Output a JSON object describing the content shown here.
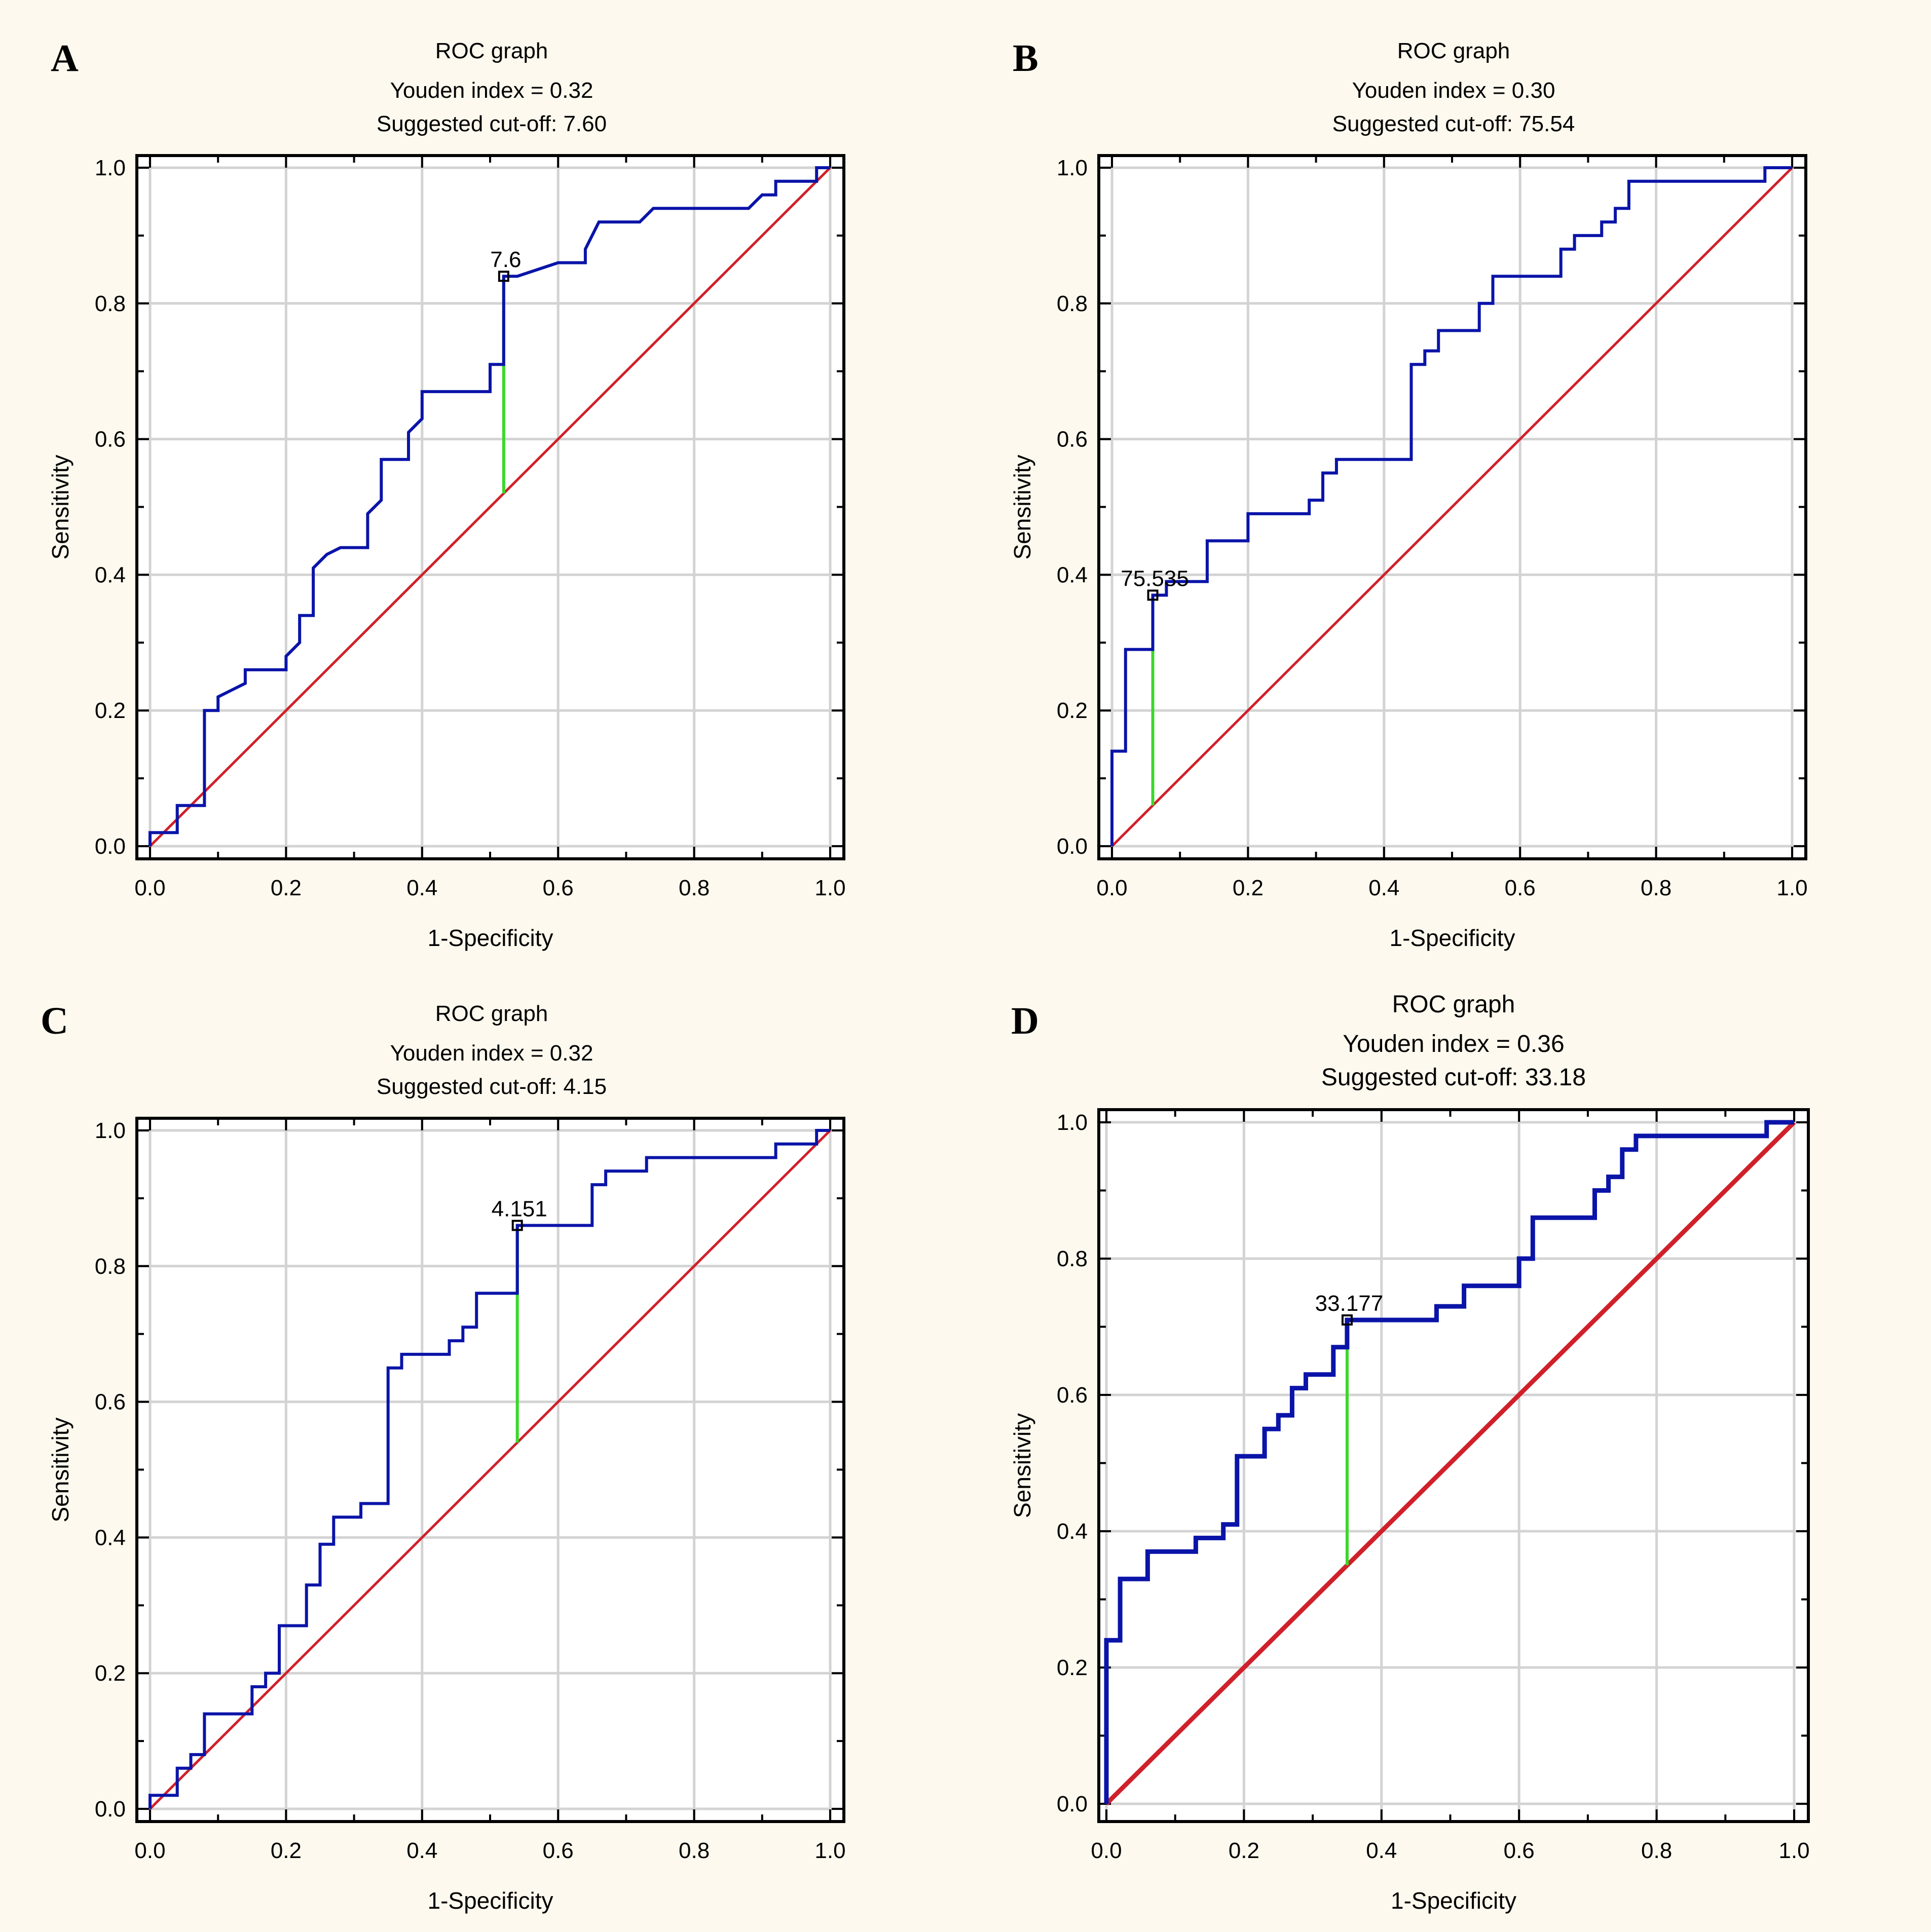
{
  "figure": {
    "background": "#fdf9ee"
  },
  "colors": {
    "roc": "#0a14a8",
    "diag": "#d0202a",
    "youden": "#3ad82a",
    "grid": "#d3d3d3",
    "axis": "#000000"
  },
  "chart_data": [
    {
      "type": "line",
      "panel_label": "A",
      "title": "ROC graph",
      "subtitle1": "Youden index = 0.32",
      "subtitle2": "Suggested cut-off: 7.60",
      "xlabel": "1-Specificity",
      "ylabel": "Sensitivity",
      "xlim": [
        0,
        1
      ],
      "ylim": [
        0,
        1
      ],
      "xticks": [
        "0.0",
        "0.2",
        "0.4",
        "0.6",
        "0.8",
        "1.0"
      ],
      "yticks": [
        "0.0",
        "0.2",
        "0.4",
        "0.6",
        "0.8",
        "1.0"
      ],
      "grid": true,
      "series": [
        {
          "name": "ROC",
          "x": [
            0,
            0,
            0.04,
            0.04,
            0.08,
            0.08,
            0.1,
            0.1,
            0.12,
            0.14,
            0.14,
            0.2,
            0.2,
            0.22,
            0.22,
            0.24,
            0.24,
            0.26,
            0.28,
            0.32,
            0.32,
            0.34,
            0.34,
            0.38,
            0.38,
            0.4,
            0.4,
            0.42,
            0.42,
            0.5,
            0.5,
            0.52,
            0.52,
            0.54,
            0.6,
            0.64,
            0.64,
            0.66,
            0.72,
            0.74,
            0.74,
            0.88,
            0.9,
            0.9,
            0.92,
            0.92,
            0.98,
            0.98,
            1
          ],
          "y": [
            0,
            0.02,
            0.02,
            0.06,
            0.06,
            0.2,
            0.2,
            0.22,
            0.23,
            0.24,
            0.26,
            0.26,
            0.28,
            0.3,
            0.34,
            0.34,
            0.41,
            0.43,
            0.44,
            0.44,
            0.49,
            0.51,
            0.57,
            0.57,
            0.61,
            0.63,
            0.67,
            0.67,
            0.67,
            0.67,
            0.71,
            0.71,
            0.84,
            0.84,
            0.86,
            0.86,
            0.88,
            0.92,
            0.92,
            0.94,
            0.94,
            0.94,
            0.96,
            0.96,
            0.96,
            0.98,
            0.98,
            1,
            1
          ]
        },
        {
          "name": "Reference",
          "x": [
            0,
            1
          ],
          "y": [
            0,
            1
          ]
        }
      ],
      "cutoff": {
        "x": 0.52,
        "y": 0.84,
        "label": "7.6"
      }
    },
    {
      "type": "line",
      "panel_label": "B",
      "title": "ROC graph",
      "subtitle1": "Youden index = 0.30",
      "subtitle2": "Suggested cut-off: 75.54",
      "xlabel": "1-Specificity",
      "ylabel": "Sensitivity",
      "xlim": [
        0,
        1
      ],
      "ylim": [
        0,
        1
      ],
      "xticks": [
        "0.0",
        "0.2",
        "0.4",
        "0.6",
        "0.8",
        "1.0"
      ],
      "yticks": [
        "0.0",
        "0.2",
        "0.4",
        "0.6",
        "0.8",
        "1.0"
      ],
      "grid": true,
      "series": [
        {
          "name": "ROC",
          "x": [
            0,
            0,
            0.02,
            0.02,
            0.06,
            0.06,
            0.08,
            0.08,
            0.14,
            0.14,
            0.2,
            0.2,
            0.29,
            0.29,
            0.31,
            0.31,
            0.33,
            0.33,
            0.44,
            0.44,
            0.46,
            0.46,
            0.48,
            0.48,
            0.54,
            0.54,
            0.56,
            0.56,
            0.66,
            0.66,
            0.68,
            0.68,
            0.72,
            0.72,
            0.74,
            0.74,
            0.76,
            0.76,
            0.96,
            0.96,
            1
          ],
          "y": [
            0,
            0.14,
            0.14,
            0.29,
            0.29,
            0.37,
            0.37,
            0.39,
            0.39,
            0.45,
            0.45,
            0.49,
            0.49,
            0.51,
            0.51,
            0.55,
            0.55,
            0.57,
            0.57,
            0.71,
            0.71,
            0.73,
            0.73,
            0.76,
            0.76,
            0.8,
            0.8,
            0.84,
            0.84,
            0.88,
            0.88,
            0.9,
            0.9,
            0.92,
            0.92,
            0.94,
            0.94,
            0.98,
            0.98,
            1,
            1
          ]
        },
        {
          "name": "Reference",
          "x": [
            0,
            1
          ],
          "y": [
            0,
            1
          ]
        }
      ],
      "cutoff": {
        "x": 0.06,
        "y": 0.37,
        "label": "75.535"
      }
    },
    {
      "type": "line",
      "panel_label": "C",
      "title": "ROC graph",
      "subtitle1": "Youden index = 0.32",
      "subtitle2": "Suggested cut-off: 4.15",
      "xlabel": "1-Specificity",
      "ylabel": "Sensitivity",
      "xlim": [
        0,
        1
      ],
      "ylim": [
        0,
        1
      ],
      "xticks": [
        "0.0",
        "0.2",
        "0.4",
        "0.6",
        "0.8",
        "1.0"
      ],
      "yticks": [
        "0.0",
        "0.2",
        "0.4",
        "0.6",
        "0.8",
        "1.0"
      ],
      "grid": true,
      "series": [
        {
          "name": "ROC",
          "x": [
            0,
            0,
            0.04,
            0.04,
            0.06,
            0.06,
            0.08,
            0.08,
            0.15,
            0.15,
            0.17,
            0.17,
            0.19,
            0.19,
            0.23,
            0.23,
            0.25,
            0.25,
            0.27,
            0.27,
            0.31,
            0.31,
            0.35,
            0.35,
            0.37,
            0.37,
            0.44,
            0.44,
            0.46,
            0.46,
            0.48,
            0.48,
            0.54,
            0.54,
            0.65,
            0.65,
            0.67,
            0.67,
            0.73,
            0.73,
            0.92,
            0.92,
            0.98,
            0.98,
            1
          ],
          "y": [
            0,
            0.02,
            0.02,
            0.06,
            0.06,
            0.08,
            0.08,
            0.14,
            0.14,
            0.18,
            0.18,
            0.2,
            0.2,
            0.27,
            0.27,
            0.33,
            0.33,
            0.39,
            0.39,
            0.43,
            0.43,
            0.45,
            0.45,
            0.65,
            0.65,
            0.67,
            0.67,
            0.69,
            0.69,
            0.71,
            0.71,
            0.76,
            0.76,
            0.86,
            0.86,
            0.92,
            0.92,
            0.94,
            0.94,
            0.96,
            0.96,
            0.98,
            0.98,
            1,
            1
          ]
        },
        {
          "name": "Reference",
          "x": [
            0,
            1
          ],
          "y": [
            0,
            1
          ]
        }
      ],
      "cutoff": {
        "x": 0.54,
        "y": 0.86,
        "label": "4.151"
      }
    },
    {
      "type": "line",
      "panel_label": "D",
      "title": "ROC graph",
      "subtitle1": "Youden index = 0.36",
      "subtitle2": "Suggested cut-off: 33.18",
      "xlabel": "1-Specificity",
      "ylabel": "Sensitivity",
      "xlim": [
        0,
        1
      ],
      "ylim": [
        0,
        1
      ],
      "xticks": [
        "0.0",
        "0.2",
        "0.4",
        "0.6",
        "0.8",
        "1.0"
      ],
      "yticks": [
        "0.0",
        "0.2",
        "0.4",
        "0.6",
        "0.8",
        "1.0"
      ],
      "grid": true,
      "series": [
        {
          "name": "ROC",
          "x": [
            0,
            0,
            0.02,
            0.02,
            0.06,
            0.06,
            0.13,
            0.13,
            0.17,
            0.17,
            0.19,
            0.19,
            0.23,
            0.23,
            0.25,
            0.25,
            0.27,
            0.27,
            0.29,
            0.29,
            0.33,
            0.33,
            0.35,
            0.35,
            0.48,
            0.48,
            0.52,
            0.52,
            0.6,
            0.6,
            0.62,
            0.62,
            0.71,
            0.71,
            0.73,
            0.73,
            0.75,
            0.75,
            0.77,
            0.77,
            0.96,
            0.96,
            1
          ],
          "y": [
            0,
            0.24,
            0.24,
            0.33,
            0.33,
            0.37,
            0.37,
            0.39,
            0.39,
            0.41,
            0.41,
            0.51,
            0.51,
            0.55,
            0.55,
            0.57,
            0.57,
            0.61,
            0.61,
            0.63,
            0.63,
            0.67,
            0.67,
            0.71,
            0.71,
            0.73,
            0.73,
            0.76,
            0.76,
            0.8,
            0.8,
            0.86,
            0.86,
            0.9,
            0.9,
            0.92,
            0.92,
            0.96,
            0.96,
            0.98,
            0.98,
            1,
            1
          ]
        },
        {
          "name": "Reference",
          "x": [
            0,
            1
          ],
          "y": [
            0,
            1
          ]
        }
      ],
      "cutoff": {
        "x": 0.35,
        "y": 0.71,
        "label": "33.177"
      }
    }
  ]
}
